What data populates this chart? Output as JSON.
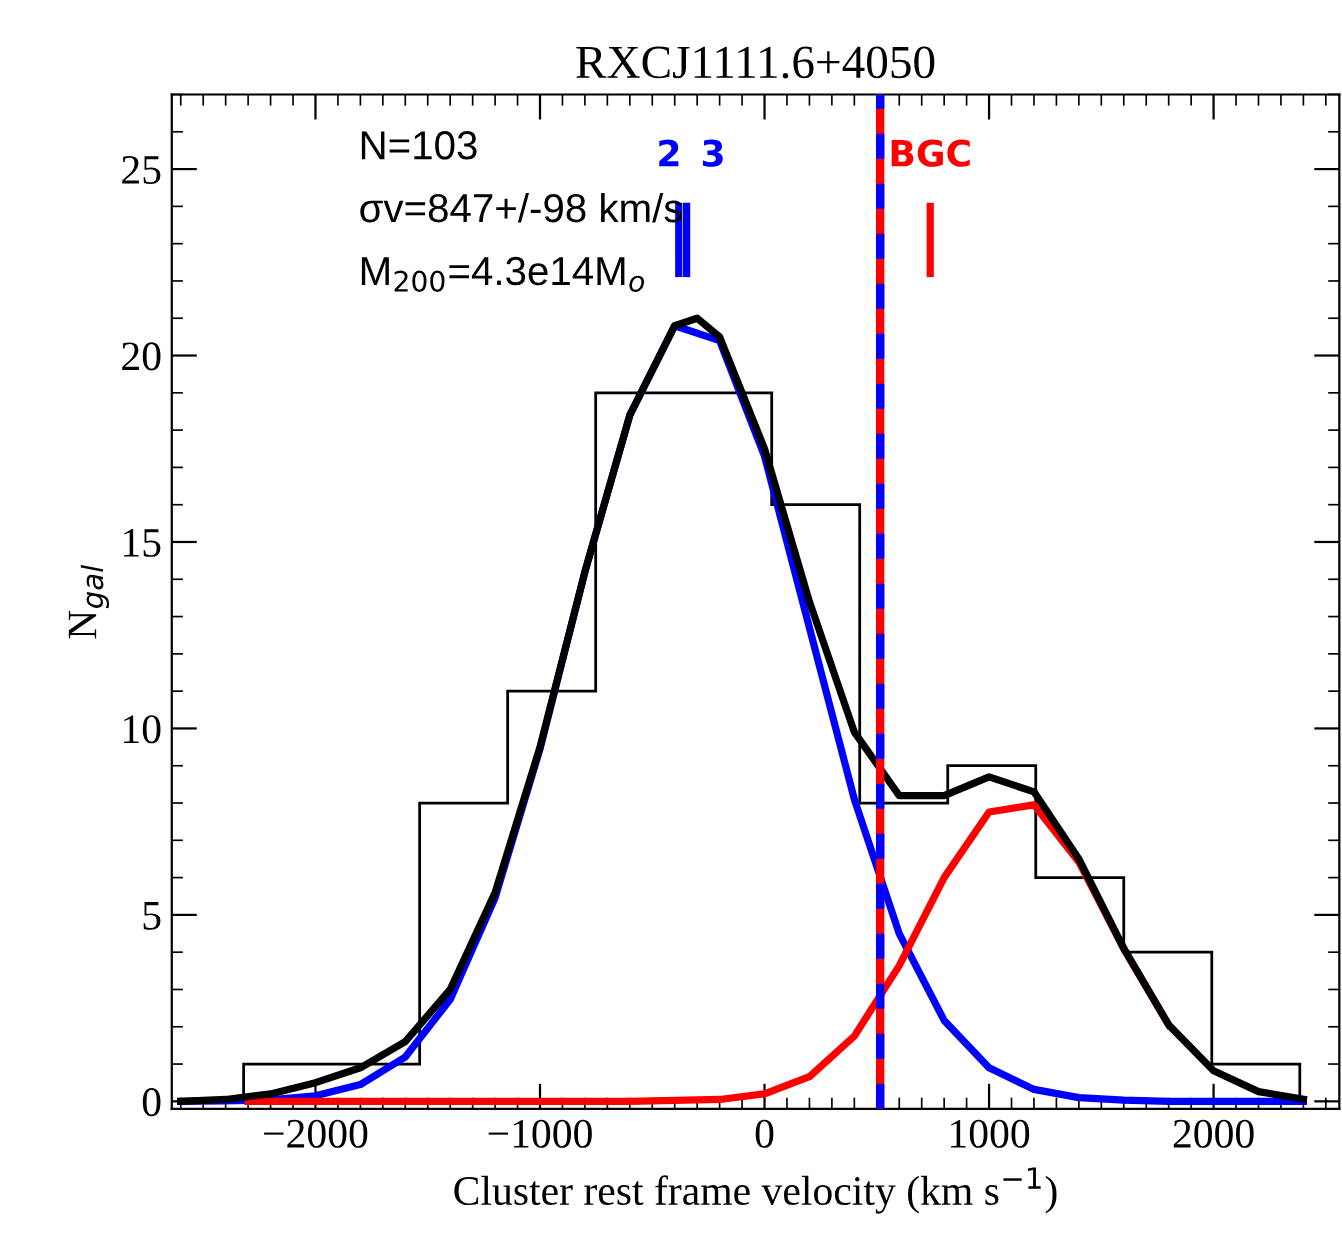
{
  "chart_data": {
    "type": "histogram",
    "title": "RXCJ1111.6+4050",
    "xlabel": "Cluster rest frame velocity (km s$^{−1}$)",
    "ylabel": "N$_{gal}$",
    "bins": [
      -2320,
      -1928,
      -1536,
      -1144,
      -752,
      -360,
      32,
      424,
      816,
      1208,
      1600,
      1992,
      2384
    ],
    "values": [
      1,
      1,
      8,
      11,
      19,
      19,
      16,
      8,
      9,
      6,
      4,
      1
    ],
    "color": "#000000",
    "series": [
      {
        "type": "line",
        "color": "#0000ff",
        "x": [
          -2600,
          -2400,
          -2200,
          -2000,
          -1800,
          -1600,
          -1400,
          -1200,
          -1000,
          -800,
          -600,
          -400,
          -200,
          0,
          200,
          400,
          600,
          800,
          1000,
          1200,
          1400,
          1600,
          1800,
          2000,
          2200,
          2400
        ],
        "values": [
          0,
          0.01,
          0.04,
          0.15,
          0.45,
          1.19,
          2.73,
          5.46,
          9.45,
          14.2,
          18.4,
          20.8,
          20.4,
          17.3,
          12.7,
          8.1,
          4.5,
          2.17,
          0.9,
          0.32,
          0.1,
          0.03,
          0,
          0,
          0,
          0
        ]
      },
      {
        "type": "line",
        "color": "#ff0000",
        "x": [
          -2300,
          -1800,
          -1200,
          -600,
          -200,
          0,
          200,
          400,
          600,
          800,
          1000,
          1200,
          1400,
          1600,
          1800
        ],
        "values": [
          0,
          0,
          0,
          0,
          0.05,
          0.2,
          0.66,
          1.75,
          3.64,
          6.0,
          7.76,
          7.95,
          6.42,
          4.09,
          2.05
        ]
      },
      {
        "type": "line",
        "color": "#000000",
        "x": [
          -2600,
          -2400,
          -2200,
          -2000,
          -1800,
          -1600,
          -1400,
          -1200,
          -1000,
          -800,
          -600,
          -400,
          -300,
          -200,
          0,
          200,
          400,
          600,
          800,
          1000,
          1200,
          1400,
          1600,
          1800,
          2000,
          2200,
          2400
        ],
        "values": [
          0,
          0.05,
          0.2,
          0.5,
          0.9,
          1.6,
          3.0,
          5.6,
          9.5,
          14.2,
          18.4,
          20.8,
          21.0,
          20.5,
          17.5,
          13.4,
          9.9,
          8.2,
          8.2,
          8.7,
          8.3,
          6.5,
          4.1,
          2.05,
          0.82,
          0.26,
          0.06
        ]
      },
      {
        "type": "line",
        "color": "#0000ff",
        "x": [
          -382,
          -382
        ],
        "values": [
          22.2,
          24.0
        ]
      },
      {
        "type": "line",
        "color": "#0000ff",
        "x": [
          -347,
          -347
        ],
        "values": [
          22.2,
          24.0
        ]
      },
      {
        "type": "line",
        "color": "#ff0000",
        "x": [
          738,
          738
        ],
        "values": [
          22.2,
          24.0
        ]
      }
    ],
    "ref_lines": [
      {
        "axis": "x",
        "value": 515,
        "color": "#ff0000",
        "line_style": "solid"
      },
      {
        "axis": "x",
        "value": 515,
        "color": "#0000ff",
        "line_style": "dashed"
      }
    ],
    "annotations": [
      "N=103",
      "σv=847+/-98 km/s",
      "M$_{200}$=4.3e14M$_{o}$",
      {
        "text": "2",
        "x": -382,
        "y": 24.0
      },
      {
        "text": "3",
        "x": -347,
        "y": 24.0
      },
      {
        "text": "BGC",
        "x": 738,
        "y": 24.0
      }
    ],
    "xlim": [
      -2640,
      2560
    ],
    "ylim": [
      -0.2,
      27
    ],
    "xticks": [
      -2000,
      -1000,
      0,
      1000,
      2000
    ],
    "yticks": [
      0,
      5,
      10,
      15,
      20,
      25
    ],
    "grid": false,
    "legend": false
  }
}
